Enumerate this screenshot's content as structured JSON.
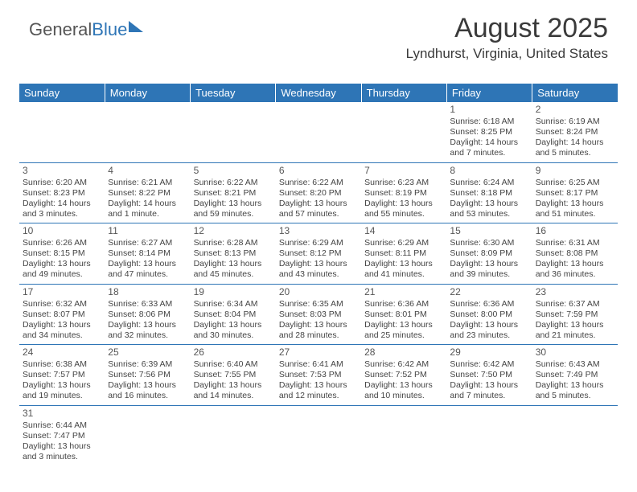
{
  "logo": {
    "part1": "General",
    "part2": "Blue"
  },
  "header": {
    "title": "August 2025",
    "location": "Lyndhurst, Virginia, United States"
  },
  "colors": {
    "header_bg": "#2e75b6",
    "header_text": "#ffffff",
    "cell_border": "#2e75b6",
    "text": "#444444",
    "title_text": "#3a3a3a"
  },
  "dayNames": [
    "Sunday",
    "Monday",
    "Tuesday",
    "Wednesday",
    "Thursday",
    "Friday",
    "Saturday"
  ],
  "firstWeekdayIndex": 5,
  "days": [
    {
      "n": 1,
      "sunrise": "6:18 AM",
      "sunset": "8:25 PM",
      "daylight": "14 hours and 7 minutes."
    },
    {
      "n": 2,
      "sunrise": "6:19 AM",
      "sunset": "8:24 PM",
      "daylight": "14 hours and 5 minutes."
    },
    {
      "n": 3,
      "sunrise": "6:20 AM",
      "sunset": "8:23 PM",
      "daylight": "14 hours and 3 minutes."
    },
    {
      "n": 4,
      "sunrise": "6:21 AM",
      "sunset": "8:22 PM",
      "daylight": "14 hours and 1 minute."
    },
    {
      "n": 5,
      "sunrise": "6:22 AM",
      "sunset": "8:21 PM",
      "daylight": "13 hours and 59 minutes."
    },
    {
      "n": 6,
      "sunrise": "6:22 AM",
      "sunset": "8:20 PM",
      "daylight": "13 hours and 57 minutes."
    },
    {
      "n": 7,
      "sunrise": "6:23 AM",
      "sunset": "8:19 PM",
      "daylight": "13 hours and 55 minutes."
    },
    {
      "n": 8,
      "sunrise": "6:24 AM",
      "sunset": "8:18 PM",
      "daylight": "13 hours and 53 minutes."
    },
    {
      "n": 9,
      "sunrise": "6:25 AM",
      "sunset": "8:17 PM",
      "daylight": "13 hours and 51 minutes."
    },
    {
      "n": 10,
      "sunrise": "6:26 AM",
      "sunset": "8:15 PM",
      "daylight": "13 hours and 49 minutes."
    },
    {
      "n": 11,
      "sunrise": "6:27 AM",
      "sunset": "8:14 PM",
      "daylight": "13 hours and 47 minutes."
    },
    {
      "n": 12,
      "sunrise": "6:28 AM",
      "sunset": "8:13 PM",
      "daylight": "13 hours and 45 minutes."
    },
    {
      "n": 13,
      "sunrise": "6:29 AM",
      "sunset": "8:12 PM",
      "daylight": "13 hours and 43 minutes."
    },
    {
      "n": 14,
      "sunrise": "6:29 AM",
      "sunset": "8:11 PM",
      "daylight": "13 hours and 41 minutes."
    },
    {
      "n": 15,
      "sunrise": "6:30 AM",
      "sunset": "8:09 PM",
      "daylight": "13 hours and 39 minutes."
    },
    {
      "n": 16,
      "sunrise": "6:31 AM",
      "sunset": "8:08 PM",
      "daylight": "13 hours and 36 minutes."
    },
    {
      "n": 17,
      "sunrise": "6:32 AM",
      "sunset": "8:07 PM",
      "daylight": "13 hours and 34 minutes."
    },
    {
      "n": 18,
      "sunrise": "6:33 AM",
      "sunset": "8:06 PM",
      "daylight": "13 hours and 32 minutes."
    },
    {
      "n": 19,
      "sunrise": "6:34 AM",
      "sunset": "8:04 PM",
      "daylight": "13 hours and 30 minutes."
    },
    {
      "n": 20,
      "sunrise": "6:35 AM",
      "sunset": "8:03 PM",
      "daylight": "13 hours and 28 minutes."
    },
    {
      "n": 21,
      "sunrise": "6:36 AM",
      "sunset": "8:01 PM",
      "daylight": "13 hours and 25 minutes."
    },
    {
      "n": 22,
      "sunrise": "6:36 AM",
      "sunset": "8:00 PM",
      "daylight": "13 hours and 23 minutes."
    },
    {
      "n": 23,
      "sunrise": "6:37 AM",
      "sunset": "7:59 PM",
      "daylight": "13 hours and 21 minutes."
    },
    {
      "n": 24,
      "sunrise": "6:38 AM",
      "sunset": "7:57 PM",
      "daylight": "13 hours and 19 minutes."
    },
    {
      "n": 25,
      "sunrise": "6:39 AM",
      "sunset": "7:56 PM",
      "daylight": "13 hours and 16 minutes."
    },
    {
      "n": 26,
      "sunrise": "6:40 AM",
      "sunset": "7:55 PM",
      "daylight": "13 hours and 14 minutes."
    },
    {
      "n": 27,
      "sunrise": "6:41 AM",
      "sunset": "7:53 PM",
      "daylight": "13 hours and 12 minutes."
    },
    {
      "n": 28,
      "sunrise": "6:42 AM",
      "sunset": "7:52 PM",
      "daylight": "13 hours and 10 minutes."
    },
    {
      "n": 29,
      "sunrise": "6:42 AM",
      "sunset": "7:50 PM",
      "daylight": "13 hours and 7 minutes."
    },
    {
      "n": 30,
      "sunrise": "6:43 AM",
      "sunset": "7:49 PM",
      "daylight": "13 hours and 5 minutes."
    },
    {
      "n": 31,
      "sunrise": "6:44 AM",
      "sunset": "7:47 PM",
      "daylight": "13 hours and 3 minutes."
    }
  ],
  "labels": {
    "sunrise": "Sunrise:",
    "sunset": "Sunset:",
    "daylight": "Daylight:"
  }
}
